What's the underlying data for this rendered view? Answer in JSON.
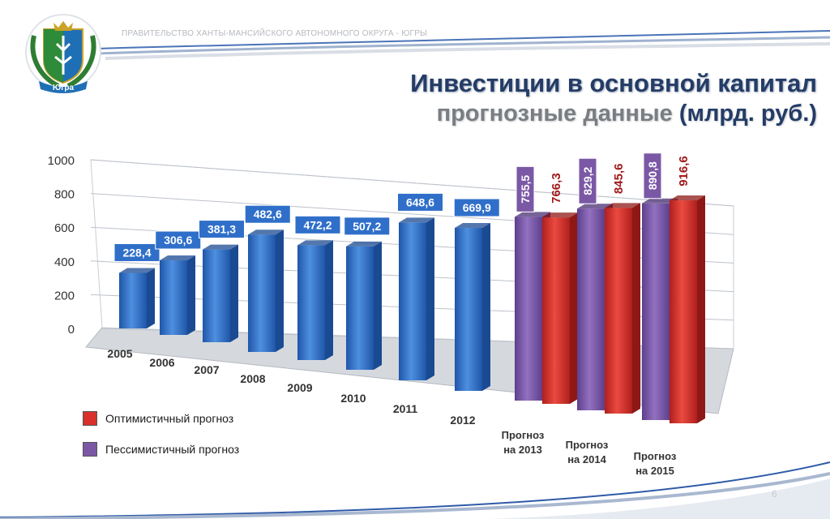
{
  "header": {
    "government_title": "ПРАВИТЕЛЬСТВО ХАНТЫ-МАНСИЙСКОГО АВТОНОМНОГО ОКРУГА - ЮГРЫ",
    "emblem_label": "Югра",
    "emblem_icon": "coat-of-arms-icon"
  },
  "title": {
    "line1": "Инвестиции в основной капитал",
    "line2": "прогнозные данные",
    "unit": "(млрд. руб.)"
  },
  "legend": {
    "optimistic": {
      "label": "Оптимистичный прогноз",
      "color": "#d9302c"
    },
    "pessimistic": {
      "label": "Пессимистичный прогноз",
      "color": "#7b58a6"
    }
  },
  "page_number": "6",
  "chart_data": {
    "type": "bar",
    "title": "",
    "xlabel": "",
    "ylabel": "",
    "ylim": [
      0,
      1000
    ],
    "y_ticks": [
      0,
      200,
      400,
      600,
      800,
      1000
    ],
    "grid": true,
    "legend_position": "bottom-left",
    "colors": {
      "actual": "#2f6fc9",
      "pessimistic": "#7b58a6",
      "optimistic": "#d9302c"
    },
    "categories": [
      "2005",
      "2006",
      "2007",
      "2008",
      "2009",
      "2010",
      "2011",
      "2012",
      "Прогноз на 2013",
      "Прогноз на 2014",
      "Прогноз на 2015"
    ],
    "series": [
      {
        "values": [
          228.4,
          306.6,
          381.3,
          482.6,
          472.2,
          507.2,
          648.6,
          669.9,
          null,
          null,
          null
        ],
        "labels": [
          "228,4",
          "306,6",
          "381,3",
          "482,6",
          "472,2",
          "507,2",
          "648,6",
          "669,9",
          null,
          null,
          null
        ]
      },
      {
        "name": "Пессимистичный прогноз",
        "values": [
          null,
          null,
          null,
          null,
          null,
          null,
          null,
          null,
          755.5,
          829.2,
          890.8
        ],
        "labels": [
          null,
          null,
          null,
          null,
          null,
          null,
          null,
          null,
          "755,5",
          "829,2",
          "890,8"
        ]
      },
      {
        "name": "Оптимистичный прогноз",
        "values": [
          null,
          null,
          null,
          null,
          null,
          null,
          null,
          null,
          766.3,
          845.6,
          916.6
        ],
        "labels": [
          null,
          null,
          null,
          null,
          null,
          null,
          null,
          null,
          "766,3",
          "845,6",
          "916,6"
        ]
      }
    ]
  }
}
